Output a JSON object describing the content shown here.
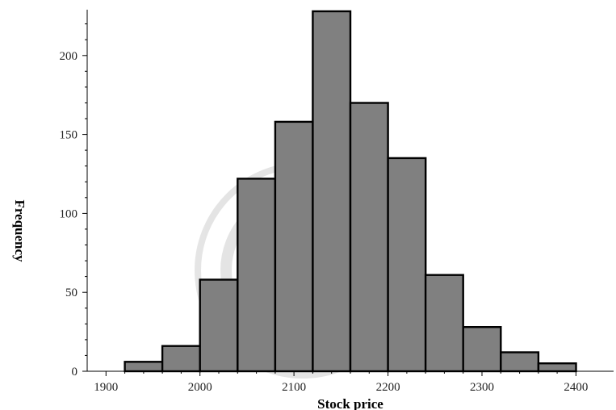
{
  "chart_data": {
    "type": "bar",
    "title": "",
    "xlabel": "Stock price",
    "ylabel": "Frequency",
    "bins": [
      {
        "start": 1920,
        "end": 1960,
        "value": 6
      },
      {
        "start": 1960,
        "end": 2000,
        "value": 16
      },
      {
        "start": 2000,
        "end": 2040,
        "value": 58
      },
      {
        "start": 2040,
        "end": 2080,
        "value": 122
      },
      {
        "start": 2080,
        "end": 2120,
        "value": 158
      },
      {
        "start": 2120,
        "end": 2160,
        "value": 228
      },
      {
        "start": 2160,
        "end": 2200,
        "value": 170
      },
      {
        "start": 2200,
        "end": 2240,
        "value": 135
      },
      {
        "start": 2240,
        "end": 2280,
        "value": 61
      },
      {
        "start": 2280,
        "end": 2320,
        "value": 28
      },
      {
        "start": 2320,
        "end": 2360,
        "value": 12
      },
      {
        "start": 2360,
        "end": 2400,
        "value": 5
      }
    ],
    "xlim": [
      1880,
      2440
    ],
    "ylim": [
      0,
      228
    ],
    "xticks": [
      "1900",
      "2000",
      "2100",
      "2200",
      "2300",
      "2400"
    ],
    "yticks": [
      "0",
      "50",
      "100",
      "150",
      "200"
    ],
    "grid": false,
    "legend": "none",
    "bar_color": "#808080",
    "edge_color": "#000000"
  }
}
